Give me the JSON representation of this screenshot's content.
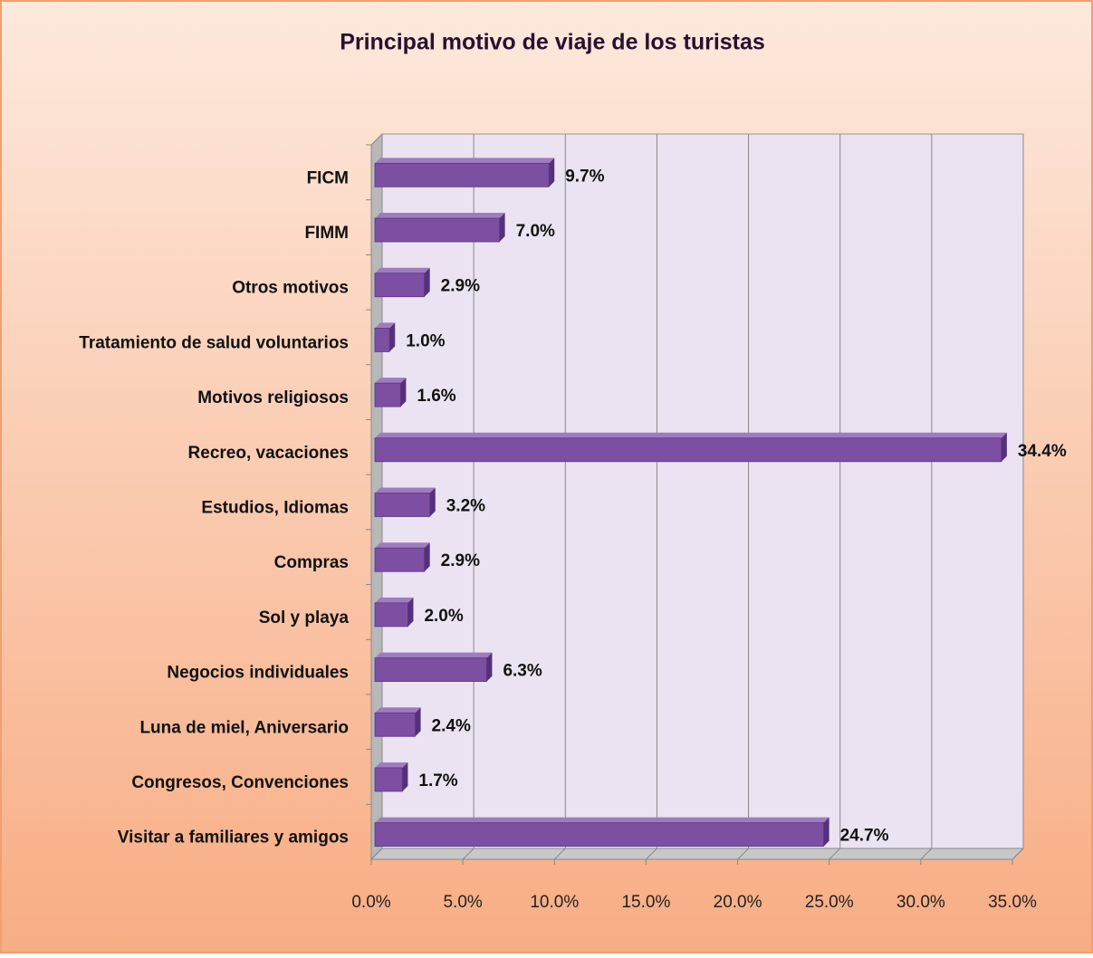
{
  "chart_data": {
    "type": "bar",
    "orientation": "horizontal",
    "title": "Principal motivo de viaje de los turistas",
    "categories": [
      "FICM",
      "FIMM",
      "Otros motivos",
      "Tratamiento de salud voluntarios",
      "Motivos religiosos",
      "Recreo, vacaciones",
      "Estudios, Idiomas",
      "Compras",
      "Sol y playa",
      "Negocios individuales",
      "Luna de miel, Aniversario",
      "Congresos, Convenciones",
      "Visitar a familiares y amigos"
    ],
    "values": [
      9.7,
      7.0,
      2.9,
      1.0,
      1.6,
      34.4,
      3.2,
      2.9,
      2.0,
      6.3,
      2.4,
      1.7,
      24.7
    ],
    "value_labels": [
      "9.7%",
      "7.0%",
      "2.9%",
      "1.0%",
      "1.6%",
      "34.4%",
      "3.2%",
      "2.9%",
      "2.0%",
      "6.3%",
      "2.4%",
      "1.7%",
      "24.7%"
    ],
    "color": "#7d4fa3",
    "xlim": [
      0,
      35
    ],
    "xticks": [
      {
        "value": 0,
        "label": "0.0%"
      },
      {
        "value": 5,
        "label": "5.0%"
      },
      {
        "value": 10,
        "label": "10.0%"
      },
      {
        "value": 15,
        "label": "15.0%"
      },
      {
        "value": 20,
        "label": "20.0%"
      },
      {
        "value": 25,
        "label": "25.0%"
      },
      {
        "value": 30,
        "label": "30.0%"
      },
      {
        "value": 35,
        "label": "35.0%"
      }
    ],
    "grid": true
  }
}
